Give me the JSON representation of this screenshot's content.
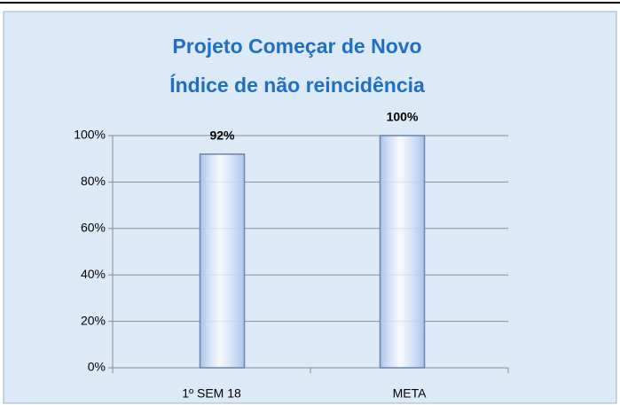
{
  "chart_data": {
    "type": "bar",
    "title": [
      "Projeto Começar de Novo",
      "Índice de não reincidência"
    ],
    "categories": [
      "1º SEM 18",
      "META"
    ],
    "values": [
      92,
      100
    ],
    "value_labels": [
      "92%",
      "100%"
    ],
    "color": "#a9c4ec",
    "ylim": [
      0,
      100
    ],
    "yticks": [
      {
        "value": 0,
        "label": "0%"
      },
      {
        "value": 20,
        "label": "20%"
      },
      {
        "value": 40,
        "label": "40%"
      },
      {
        "value": 60,
        "label": "60%"
      },
      {
        "value": 80,
        "label": "80%"
      },
      {
        "value": 100,
        "label": "100%"
      }
    ],
    "grid": true
  }
}
